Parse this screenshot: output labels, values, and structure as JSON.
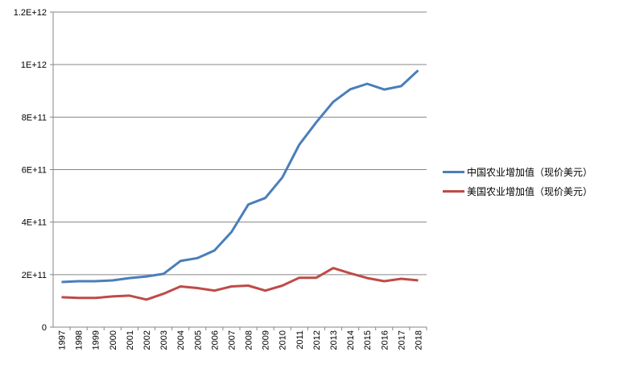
{
  "chart_data": {
    "type": "line",
    "title": "",
    "xlabel": "",
    "ylabel": "",
    "ylim": [
      0,
      1200000000000.0
    ],
    "yticks": [
      0,
      200000000000.0,
      400000000000.0,
      600000000000.0,
      800000000000.0,
      1000000000000.0,
      1200000000000.0
    ],
    "ytick_labels": [
      "0",
      "2E+11",
      "4E+11",
      "6E+11",
      "8E+11",
      "1E+12",
      "1.2E+12"
    ],
    "grid": true,
    "legend_position": "right",
    "categories": [
      "1997",
      "1998",
      "1999",
      "2000",
      "2001",
      "2002",
      "2003",
      "2004",
      "2005",
      "2006",
      "2007",
      "2008",
      "2009",
      "2010",
      "2011",
      "2012",
      "2013",
      "2014",
      "2015",
      "2016",
      "2017",
      "2018"
    ],
    "series": [
      {
        "name": "中国农业增加值（现价美元）",
        "color": "#4a7ebb",
        "values": [
          172000000000.0,
          175000000000.0,
          175000000000.0,
          178000000000.0,
          187000000000.0,
          193000000000.0,
          203000000000.0,
          252000000000.0,
          263000000000.0,
          292000000000.0,
          362000000000.0,
          467000000000.0,
          492000000000.0,
          570000000000.0,
          695000000000.0,
          780000000000.0,
          858000000000.0,
          906000000000.0,
          927000000000.0,
          905000000000.0,
          918000000000.0,
          978000000000.0
        ]
      },
      {
        "name": "美国农业增加值（现价美元）",
        "color": "#be4b48",
        "values": [
          114000000000.0,
          111000000000.0,
          111000000000.0,
          117000000000.0,
          120000000000.0,
          105000000000.0,
          127000000000.0,
          155000000000.0,
          149000000000.0,
          139000000000.0,
          155000000000.0,
          158000000000.0,
          139000000000.0,
          158000000000.0,
          188000000000.0,
          188000000000.0,
          225000000000.0,
          205000000000.0,
          187000000000.0,
          175000000000.0,
          184000000000.0,
          178000000000.0
        ]
      }
    ]
  }
}
